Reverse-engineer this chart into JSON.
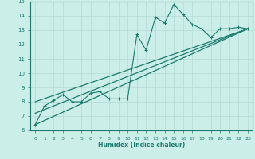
{
  "xlabel": "Humidex (Indice chaleur)",
  "ylabel": "",
  "bg_color": "#cceee8",
  "line_color": "#1a7a6e",
  "grid_color": "#b8ddd8",
  "xlim": [
    -0.5,
    23.5
  ],
  "ylim": [
    6,
    15
  ],
  "xticks": [
    0,
    1,
    2,
    3,
    4,
    5,
    6,
    7,
    8,
    9,
    10,
    11,
    12,
    13,
    14,
    15,
    16,
    17,
    18,
    19,
    20,
    21,
    22,
    23
  ],
  "yticks": [
    6,
    7,
    8,
    9,
    10,
    11,
    12,
    13,
    14,
    15
  ],
  "series": [
    [
      0,
      6.4
    ],
    [
      1,
      7.7
    ],
    [
      2,
      8.1
    ],
    [
      3,
      8.5
    ],
    [
      4,
      8.0
    ],
    [
      5,
      8.0
    ],
    [
      6,
      8.6
    ],
    [
      7,
      8.7
    ],
    [
      8,
      8.2
    ],
    [
      9,
      8.2
    ],
    [
      10,
      8.2
    ],
    [
      11,
      12.7
    ],
    [
      12,
      11.6
    ],
    [
      13,
      13.9
    ],
    [
      14,
      13.5
    ],
    [
      15,
      14.8
    ],
    [
      16,
      14.1
    ],
    [
      17,
      13.4
    ],
    [
      18,
      13.1
    ],
    [
      19,
      12.5
    ],
    [
      20,
      13.1
    ],
    [
      21,
      13.1
    ],
    [
      22,
      13.2
    ],
    [
      23,
      13.1
    ]
  ],
  "line1": [
    [
      0,
      6.4
    ],
    [
      23,
      13.1
    ]
  ],
  "line2": [
    [
      0,
      7.2
    ],
    [
      23,
      13.1
    ]
  ],
  "line3": [
    [
      0,
      8.0
    ],
    [
      23,
      13.1
    ]
  ]
}
